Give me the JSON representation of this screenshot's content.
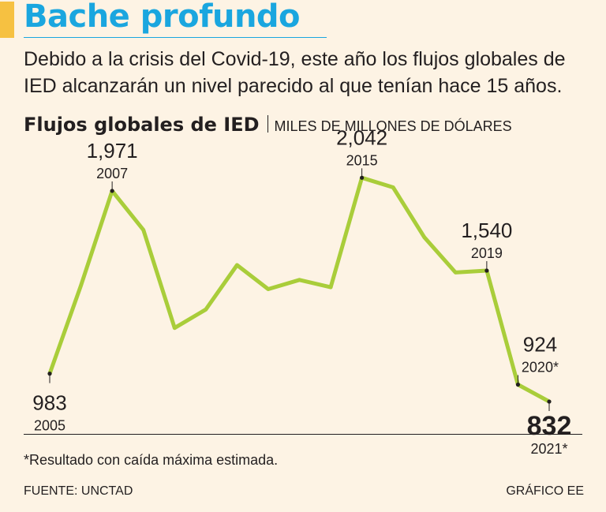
{
  "headline": "Bache profundo",
  "dek": "Debido a la crisis del Covid-19, este año los flujos globales de IED alcanzarán un nivel parecido al que tenían hace 15 años.",
  "chart_title": "Flujos globales de IED",
  "chart_unit": "MILES DE MILLONES DE DÓLARES",
  "footnote": "*Resultado con caída máxima estimada.",
  "source": "FUENTE: UNCTAD",
  "credit": "GRÁFICO EE",
  "colors": {
    "line": "#a9cd3a",
    "headline": "#1aa6df",
    "accent_bar": "#f6c141",
    "background": "#fdf3e4",
    "text": "#231f20"
  },
  "chart_data": {
    "type": "line",
    "title": "Flujos globales de IED",
    "ylabel": "MILES DE MILLONES DE DÓLARES",
    "xlabel": "",
    "x": [
      2005,
      2006,
      2007,
      2008,
      2009,
      2010,
      2011,
      2012,
      2013,
      2014,
      2015,
      2016,
      2017,
      2018,
      2019,
      2020,
      2021
    ],
    "values": [
      983,
      1460,
      1971,
      1760,
      1230,
      1330,
      1570,
      1440,
      1490,
      1450,
      2042,
      1990,
      1720,
      1530,
      1540,
      924,
      832
    ],
    "ylim": [
      700,
      2150
    ],
    "grid": false,
    "annotations": [
      {
        "year": 2005,
        "value_label": "983",
        "year_label": "2005",
        "placement": "below"
      },
      {
        "year": 2007,
        "value_label": "1,971",
        "year_label": "2007",
        "placement": "above"
      },
      {
        "year": 2015,
        "value_label": "2,042",
        "year_label": "2015",
        "placement": "above"
      },
      {
        "year": 2019,
        "value_label": "1,540",
        "year_label": "2019",
        "placement": "above"
      },
      {
        "year": 2020,
        "value_label": "924",
        "year_label": "2020*",
        "placement": "above"
      },
      {
        "year": 2021,
        "value_label": "832",
        "year_label": "2021*",
        "placement": "below",
        "bold": true
      }
    ]
  }
}
